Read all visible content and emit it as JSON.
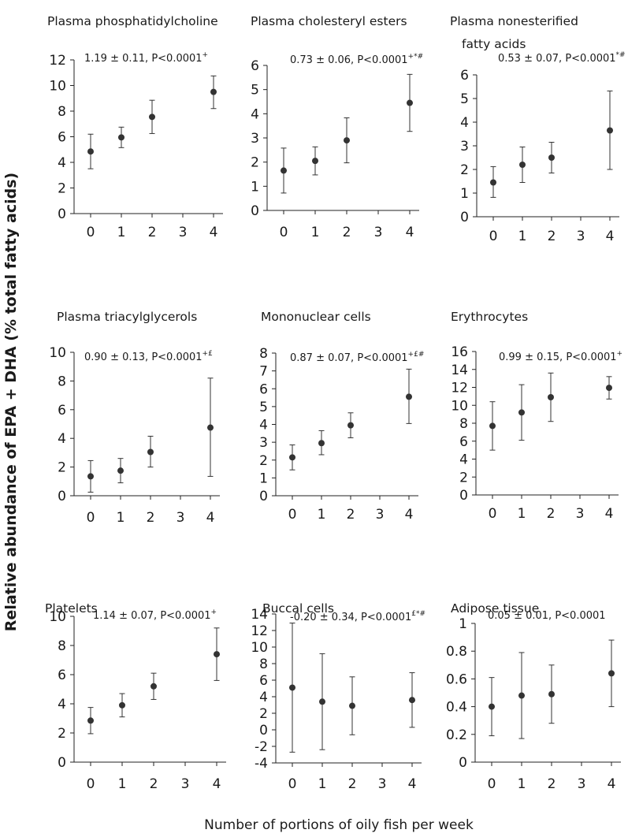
{
  "figure": {
    "y_label": "Relative abundance of EPA + DHA (% total fatty acids)",
    "x_label": "Number of portions of oily fish per week"
  },
  "chart_data": [
    {
      "type": "scatter",
      "title": [
        "Plasma phosphatidylcholine"
      ],
      "annotation": {
        "text": "1.19 ± 0.11, P<0.0001",
        "sup": "+"
      },
      "x_ticks": [
        "0",
        "1",
        "2",
        "3",
        "4"
      ],
      "y_ticks": [
        "0",
        "2",
        "4",
        "6",
        "8",
        "10",
        "12"
      ],
      "ylim": [
        0,
        12
      ],
      "points": [
        {
          "x": 0,
          "y": 4.85,
          "low": 3.5,
          "high": 6.2
        },
        {
          "x": 1,
          "y": 5.95,
          "low": 5.15,
          "high": 6.75
        },
        {
          "x": 2,
          "y": 7.55,
          "low": 6.25,
          "high": 8.85
        },
        {
          "x": 4,
          "y": 9.5,
          "low": 8.2,
          "high": 10.75
        }
      ]
    },
    {
      "type": "scatter",
      "title": [
        "Plasma cholesteryl esters"
      ],
      "annotation": {
        "text": "0.73 ± 0.06, P<0.0001",
        "sup": "+*#"
      },
      "x_ticks": [
        "0",
        "1",
        "2",
        "3",
        "4"
      ],
      "y_ticks": [
        "0",
        "1",
        "2",
        "3",
        "4",
        "5",
        "6"
      ],
      "ylim": [
        0,
        6
      ],
      "points": [
        {
          "x": 0,
          "y": 1.65,
          "low": 0.72,
          "high": 2.58
        },
        {
          "x": 1,
          "y": 2.05,
          "low": 1.47,
          "high": 2.63
        },
        {
          "x": 2,
          "y": 2.9,
          "low": 1.97,
          "high": 3.83
        },
        {
          "x": 4,
          "y": 4.45,
          "low": 3.27,
          "high": 5.63
        }
      ]
    },
    {
      "type": "scatter",
      "title": [
        "Plasma nonesterified",
        "fatty acids"
      ],
      "annotation": {
        "text": "0.53 ± 0.07, P<0.0001",
        "sup": "*#"
      },
      "x_ticks": [
        "0",
        "1",
        "2",
        "3",
        "4"
      ],
      "y_ticks": [
        "0",
        "1",
        "2",
        "3",
        "4",
        "5",
        "6"
      ],
      "ylim": [
        0,
        6
      ],
      "points": [
        {
          "x": 0,
          "y": 1.45,
          "low": 0.82,
          "high": 2.12
        },
        {
          "x": 1,
          "y": 2.2,
          "low": 1.45,
          "high": 2.95
        },
        {
          "x": 2,
          "y": 2.5,
          "low": 1.85,
          "high": 3.15
        },
        {
          "x": 4,
          "y": 3.65,
          "low": 2.0,
          "high": 5.32
        }
      ]
    },
    {
      "type": "scatter",
      "title": [
        "Plasma triacylglycerols"
      ],
      "annotation": {
        "text": "0.90 ± 0.13, P<0.0001",
        "sup": "+£"
      },
      "x_ticks": [
        "0",
        "1",
        "2",
        "3",
        "4"
      ],
      "y_ticks": [
        "0",
        "2",
        "4",
        "6",
        "8",
        "10"
      ],
      "ylim": [
        0,
        10
      ],
      "points": [
        {
          "x": 0,
          "y": 1.35,
          "low": 0.25,
          "high": 2.45
        },
        {
          "x": 1,
          "y": 1.75,
          "low": 0.9,
          "high": 2.6
        },
        {
          "x": 2,
          "y": 3.05,
          "low": 2.0,
          "high": 4.15
        },
        {
          "x": 4,
          "y": 4.75,
          "low": 1.35,
          "high": 8.2
        }
      ]
    },
    {
      "type": "scatter",
      "title": [
        "Mononuclear cells"
      ],
      "annotation": {
        "text": "0.87 ± 0.07, P<0.0001",
        "sup": "+£#"
      },
      "x_ticks": [
        "0",
        "1",
        "2",
        "3",
        "4"
      ],
      "y_ticks": [
        "0",
        "1",
        "2",
        "3",
        "4",
        "5",
        "6",
        "7",
        "8"
      ],
      "ylim": [
        0,
        8
      ],
      "points": [
        {
          "x": 0,
          "y": 2.15,
          "low": 1.45,
          "high": 2.85
        },
        {
          "x": 1,
          "y": 2.95,
          "low": 2.3,
          "high": 3.65
        },
        {
          "x": 2,
          "y": 3.95,
          "low": 3.25,
          "high": 4.65
        },
        {
          "x": 4,
          "y": 5.55,
          "low": 4.05,
          "high": 7.1
        }
      ]
    },
    {
      "type": "scatter",
      "title": [
        "Erythrocytes"
      ],
      "annotation": {
        "text": "0.99 ± 0.15, P<0.0001",
        "sup": "+"
      },
      "x_ticks": [
        "0",
        "1",
        "2",
        "3",
        "4"
      ],
      "y_ticks": [
        "0",
        "2",
        "4",
        "6",
        "8",
        "10",
        "12",
        "14",
        "16"
      ],
      "ylim": [
        0,
        16
      ],
      "points": [
        {
          "x": 0,
          "y": 7.7,
          "low": 5.0,
          "high": 10.4
        },
        {
          "x": 1,
          "y": 9.2,
          "low": 6.1,
          "high": 12.3
        },
        {
          "x": 2,
          "y": 10.9,
          "low": 8.2,
          "high": 13.6
        },
        {
          "x": 4,
          "y": 11.95,
          "low": 10.7,
          "high": 13.2
        }
      ]
    },
    {
      "type": "scatter",
      "title": [
        "Platelets"
      ],
      "annotation": {
        "text": "1.14 ± 0.07, P<0.0001",
        "sup": "+"
      },
      "x_ticks": [
        "0",
        "1",
        "2",
        "3",
        "4"
      ],
      "y_ticks": [
        "0",
        "2",
        "4",
        "6",
        "8",
        "10"
      ],
      "ylim": [
        0,
        10
      ],
      "points": [
        {
          "x": 0,
          "y": 2.85,
          "low": 1.95,
          "high": 3.75
        },
        {
          "x": 1,
          "y": 3.9,
          "low": 3.1,
          "high": 4.7
        },
        {
          "x": 2,
          "y": 5.2,
          "low": 4.3,
          "high": 6.1
        },
        {
          "x": 4,
          "y": 7.4,
          "low": 5.6,
          "high": 9.2
        }
      ]
    },
    {
      "type": "scatter",
      "title": [
        "Buccal cells"
      ],
      "annotation": {
        "text": "-0.20 ± 0.34, P<0.0001",
        "sup": "£*#"
      },
      "x_ticks": [
        "0",
        "1",
        "2",
        "3",
        "4"
      ],
      "y_ticks": [
        "-4",
        "-2",
        "0",
        "2",
        "4",
        "6",
        "8",
        "10",
        "12",
        "14"
      ],
      "ylim": [
        -4,
        14
      ],
      "points": [
        {
          "x": 0,
          "y": 5.1,
          "low": -2.7,
          "high": 12.9
        },
        {
          "x": 1,
          "y": 3.4,
          "low": -2.4,
          "high": 9.2
        },
        {
          "x": 2,
          "y": 2.9,
          "low": -0.6,
          "high": 6.4
        },
        {
          "x": 4,
          "y": 3.6,
          "low": 0.3,
          "high": 6.9
        }
      ]
    },
    {
      "type": "scatter",
      "title": [
        "Adipose tissue"
      ],
      "annotation": {
        "text": "0.05 ± 0.01, P<0.0001",
        "sup": ""
      },
      "x_ticks": [
        "0",
        "1",
        "2",
        "3",
        "4"
      ],
      "y_ticks": [
        "0",
        "0.2",
        "0.4",
        "0.6",
        "0.8",
        "1"
      ],
      "ylim": [
        0,
        1
      ],
      "points": [
        {
          "x": 0,
          "y": 0.4,
          "low": 0.19,
          "high": 0.61
        },
        {
          "x": 1,
          "y": 0.48,
          "low": 0.17,
          "high": 0.79
        },
        {
          "x": 2,
          "y": 0.49,
          "low": 0.28,
          "high": 0.7
        },
        {
          "x": 4,
          "y": 0.64,
          "low": 0.4,
          "high": 0.88
        }
      ]
    }
  ]
}
